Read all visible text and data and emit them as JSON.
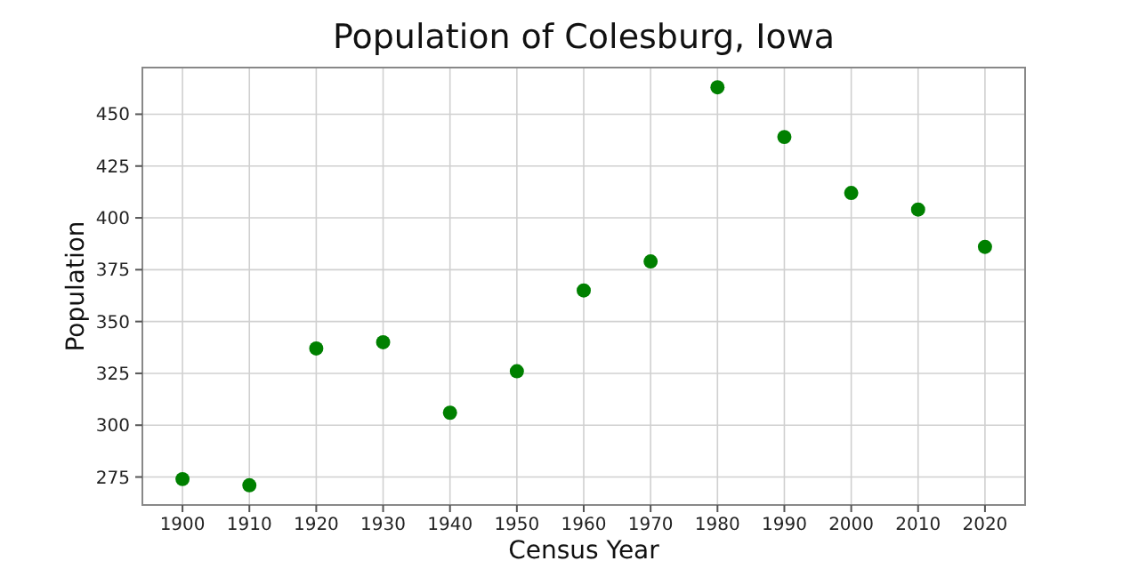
{
  "chart_data": {
    "type": "scatter",
    "title": "Population of Colesburg, Iowa",
    "xlabel": "Census Year",
    "ylabel": "Population",
    "x": [
      1900,
      1910,
      1920,
      1930,
      1940,
      1950,
      1960,
      1970,
      1980,
      1990,
      2000,
      2010,
      2020
    ],
    "values": [
      274,
      271,
      337,
      340,
      306,
      326,
      365,
      379,
      463,
      439,
      412,
      404,
      386
    ],
    "color": "#008000",
    "marker": "circle",
    "grid": true,
    "xlim": [
      1894,
      2026
    ],
    "xticks": [
      1900,
      1910,
      1920,
      1930,
      1940,
      1950,
      1960,
      1970,
      1980,
      1990,
      2000,
      2010,
      2020
    ],
    "ylim": [
      261.5,
      472.5
    ],
    "yticks": [
      275,
      300,
      325,
      350,
      375,
      400,
      425,
      450
    ]
  }
}
